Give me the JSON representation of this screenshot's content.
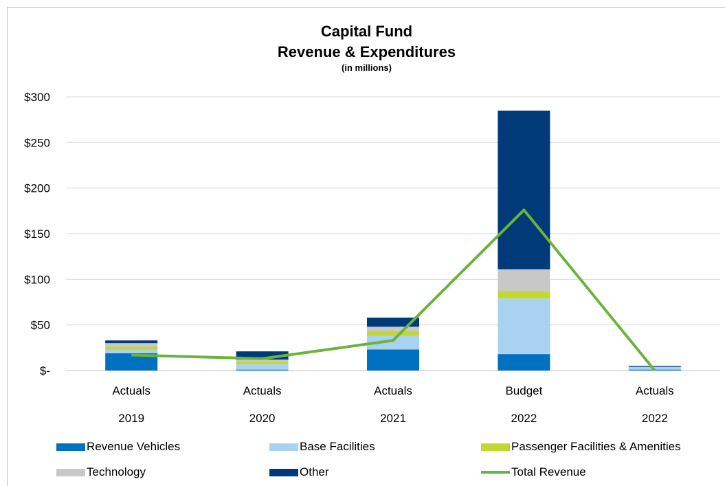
{
  "chart_data": {
    "type": "bar",
    "stacked": true,
    "title": "Capital Fund",
    "subtitle": "Revenue & Expenditures",
    "units_note": "(in millions)",
    "categories": [
      {
        "label": "Actuals",
        "year": "2019"
      },
      {
        "label": "Actuals",
        "year": "2020"
      },
      {
        "label": "Actuals",
        "year": "2021"
      },
      {
        "label": "Budget",
        "year": "2022"
      },
      {
        "label": "Actuals",
        "year": "2022"
      }
    ],
    "y_ticks": [
      "$-",
      "$50",
      "$100",
      "$150",
      "$200",
      "$250",
      "$300"
    ],
    "ylim": [
      0,
      300
    ],
    "grid": true,
    "legend_position": "bottom",
    "series": [
      {
        "name": "Revenue Vehicles",
        "color": "#0070c0",
        "values": [
          19,
          1,
          23,
          18,
          1
        ]
      },
      {
        "name": "Base Facilities",
        "color": "#a9d1f0",
        "values": [
          4,
          6,
          15,
          61,
          3
        ]
      },
      {
        "name": "Passenger Facilities & Amenities",
        "color": "#c3d82e",
        "values": [
          3,
          3,
          5,
          8,
          0
        ]
      },
      {
        "name": "Technology",
        "color": "#c8c8c8",
        "values": [
          4,
          2,
          5,
          24,
          0
        ]
      },
      {
        "name": "Other",
        "color": "#003a78",
        "values": [
          3,
          9,
          10,
          174,
          1
        ]
      }
    ],
    "line": {
      "name": "Total Revenue",
      "color": "#6bb33a",
      "values": [
        17,
        13,
        33,
        176,
        0
      ]
    }
  }
}
